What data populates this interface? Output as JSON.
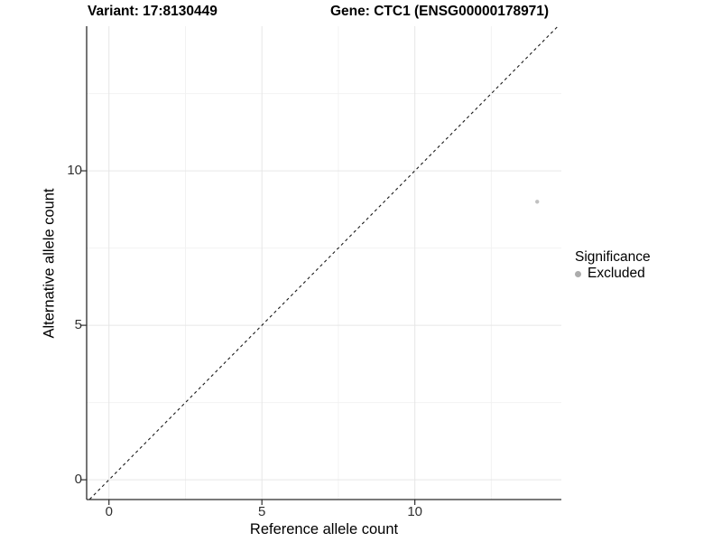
{
  "chart_data": {
    "type": "scatter",
    "titles": {
      "left": "Variant: 17:8130449",
      "right": "Gene: CTC1 (ENSG00000178971)"
    },
    "xlabel": "Reference allele count",
    "ylabel": "Alternative allele count",
    "xlim": [
      -0.73,
      14.79
    ],
    "ylim": [
      -0.64,
      14.68
    ],
    "x_ticks": [
      0,
      5,
      10
    ],
    "y_ticks": [
      0,
      5,
      10
    ],
    "x_minor_ticks": [
      2.5,
      7.5,
      12.5
    ],
    "y_minor_ticks": [
      2.5,
      7.5,
      12.5
    ],
    "grid": "major+minor",
    "identity_line": {
      "slope": 1,
      "intercept": 0,
      "style": "dashed",
      "color": "#1a1a1a"
    },
    "series": [
      {
        "name": "Excluded",
        "color": "#c1c1c1",
        "point_radius": 2.2,
        "points": [
          {
            "x": 14,
            "y": 9
          }
        ]
      }
    ],
    "legend": {
      "title": "Significance",
      "position": "right",
      "items": [
        {
          "label": "Excluded",
          "color": "#acacac"
        }
      ]
    }
  },
  "colors": {
    "background": "#ffffff",
    "grid_major": "#e6e6e6",
    "grid_minor": "#f2f2f2",
    "axis_line": "#2b2b2b",
    "tick_mark": "#2b2b2b",
    "title_text": "#000000",
    "tick_text": "#303030"
  }
}
